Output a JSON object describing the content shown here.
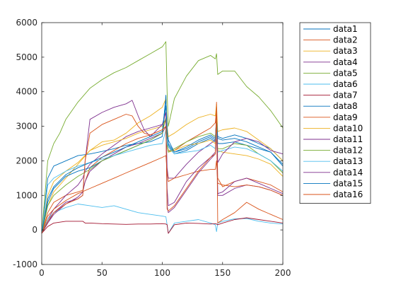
{
  "chart_data": {
    "type": "line",
    "title": "",
    "xlabel": "",
    "ylabel": "",
    "xlim": [
      0,
      200
    ],
    "ylim": [
      -1000,
      6000
    ],
    "xticks": [
      0,
      50,
      100,
      150,
      200
    ],
    "yticks": [
      -1000,
      0,
      1000,
      2000,
      3000,
      4000,
      5000,
      6000
    ],
    "xtick_labels": [
      "0",
      "50",
      "100",
      "150",
      "200"
    ],
    "ytick_labels": [
      "-1000",
      "0",
      "1000",
      "2000",
      "3000",
      "4000",
      "5000",
      "6000"
    ],
    "grid": false,
    "legend_position": "outside-right",
    "series": [
      {
        "name": "data1",
        "color": "#0072BD",
        "x": [
          0,
          5,
          10,
          20,
          30,
          40,
          50,
          60,
          70,
          80,
          90,
          100,
          103,
          104,
          105,
          110,
          120,
          130,
          140,
          144,
          145,
          146,
          150,
          160,
          170,
          180,
          190,
          200
        ],
        "y": [
          -100,
          1500,
          1850,
          2000,
          2150,
          2200,
          2270,
          2350,
          2450,
          2500,
          2550,
          2700,
          3900,
          3000,
          2600,
          2250,
          2350,
          2550,
          2700,
          2600,
          3200,
          2700,
          2650,
          2750,
          2650,
          2500,
          2350,
          2000
        ]
      },
      {
        "name": "data2",
        "color": "#D95319",
        "x": [
          0,
          5,
          10,
          20,
          30,
          34,
          36,
          40,
          50,
          60,
          70,
          80,
          90,
          100,
          103,
          104,
          105,
          110,
          120,
          130,
          140,
          144,
          145,
          146,
          150,
          160,
          170,
          180,
          190,
          200
        ],
        "y": [
          -100,
          500,
          800,
          1000,
          1100,
          1150,
          1400,
          1800,
          2100,
          2300,
          2500,
          2650,
          2750,
          2900,
          3200,
          2500,
          2300,
          2300,
          2550,
          2750,
          2950,
          3100,
          3500,
          1500,
          1250,
          1400,
          1500,
          1400,
          1300,
          1100
        ]
      },
      {
        "name": "data3",
        "color": "#EDB120",
        "x": [
          0,
          5,
          10,
          20,
          30,
          40,
          50,
          60,
          70,
          75,
          80,
          90,
          100,
          103,
          104,
          105,
          110,
          120,
          130,
          140,
          144,
          145,
          146,
          150,
          160,
          170,
          180,
          190,
          200
        ],
        "y": [
          -100,
          700,
          1100,
          1500,
          1900,
          2300,
          2550,
          2600,
          2800,
          2950,
          3100,
          3300,
          3550,
          3800,
          3000,
          2700,
          2800,
          3050,
          3250,
          3350,
          3300,
          3650,
          2850,
          2900,
          2950,
          2850,
          2600,
          2350,
          2000
        ]
      },
      {
        "name": "data4",
        "color": "#7E2F8E",
        "x": [
          0,
          5,
          10,
          20,
          30,
          34,
          36,
          40,
          50,
          60,
          70,
          80,
          90,
          100,
          103,
          104,
          105,
          110,
          120,
          130,
          140,
          144,
          145,
          146,
          150,
          160,
          170,
          180,
          190,
          200
        ],
        "y": [
          -100,
          300,
          600,
          1000,
          1300,
          1500,
          1700,
          1900,
          2200,
          2450,
          2700,
          2850,
          2950,
          3050,
          3200,
          1800,
          1500,
          1500,
          1900,
          2250,
          2500,
          2600,
          3300,
          1000,
          1000,
          1200,
          1300,
          1250,
          1150,
          1000
        ]
      },
      {
        "name": "data5",
        "color": "#77AC30",
        "x": [
          0,
          5,
          10,
          15,
          20,
          30,
          40,
          50,
          60,
          70,
          80,
          90,
          100,
          103,
          104,
          105,
          110,
          120,
          130,
          140,
          144,
          145,
          146,
          150,
          160,
          170,
          180,
          190,
          195,
          200
        ],
        "y": [
          -100,
          2000,
          2500,
          2800,
          3200,
          3700,
          4100,
          4350,
          4550,
          4700,
          4900,
          5100,
          5300,
          5450,
          4000,
          3000,
          3800,
          4450,
          4900,
          5050,
          4950,
          5100,
          4500,
          4600,
          4600,
          4150,
          3850,
          3450,
          3200,
          2950
        ]
      },
      {
        "name": "data6",
        "color": "#4DBEEE",
        "x": [
          0,
          5,
          10,
          20,
          30,
          40,
          50,
          60,
          70,
          80,
          90,
          100,
          103,
          104,
          105,
          110,
          120,
          130,
          140,
          144,
          145,
          146,
          150,
          160,
          170,
          180,
          190,
          200
        ],
        "y": [
          -100,
          300,
          500,
          650,
          750,
          700,
          650,
          700,
          600,
          500,
          450,
          400,
          380,
          150,
          -100,
          200,
          250,
          300,
          200,
          150,
          -50,
          200,
          250,
          320,
          330,
          250,
          200,
          170
        ]
      },
      {
        "name": "data7",
        "color": "#A2142F",
        "x": [
          0,
          5,
          10,
          20,
          30,
          34,
          36,
          40,
          50,
          60,
          70,
          80,
          90,
          100,
          103,
          104,
          105,
          110,
          120,
          130,
          140,
          144,
          145,
          146,
          150,
          160,
          170,
          180,
          190,
          200
        ],
        "y": [
          -100,
          100,
          200,
          250,
          250,
          250,
          200,
          200,
          180,
          170,
          160,
          170,
          170,
          180,
          170,
          150,
          -100,
          150,
          200,
          190,
          170,
          180,
          170,
          150,
          200,
          300,
          350,
          300,
          250,
          200
        ]
      },
      {
        "name": "data8",
        "color": "#0072BD",
        "x": [
          0,
          5,
          10,
          20,
          30,
          40,
          50,
          60,
          70,
          80,
          90,
          100,
          103,
          104,
          105,
          110,
          120,
          130,
          140,
          144,
          145,
          146,
          150,
          160,
          170,
          180,
          190,
          200
        ],
        "y": [
          -100,
          800,
          1200,
          1550,
          1700,
          1800,
          2000,
          2150,
          2300,
          2450,
          2600,
          2800,
          3600,
          2800,
          2450,
          2200,
          2300,
          2500,
          2650,
          2550,
          3100,
          2500,
          2500,
          2550,
          2450,
          2350,
          2250,
          1850
        ]
      },
      {
        "name": "data9",
        "color": "#D95319",
        "x": [
          0,
          5,
          10,
          20,
          30,
          40,
          50,
          60,
          70,
          80,
          90,
          100,
          103,
          104,
          105,
          110,
          120,
          130,
          140,
          144,
          145,
          146,
          150,
          160,
          170,
          180,
          190,
          200
        ],
        "y": [
          -100,
          400,
          600,
          850,
          1050,
          1200,
          1350,
          1500,
          1650,
          1800,
          1950,
          2100,
          2150,
          1700,
          1400,
          1500,
          1600,
          1700,
          1750,
          1750,
          2000,
          1350,
          1300,
          1250,
          1300,
          1250,
          1150,
          1000
        ]
      },
      {
        "name": "data10",
        "color": "#EDB120",
        "x": [
          0,
          5,
          10,
          20,
          30,
          40,
          50,
          60,
          70,
          80,
          90,
          100,
          103,
          104,
          105,
          110,
          120,
          130,
          140,
          144,
          145,
          146,
          150,
          160,
          170,
          180,
          190,
          200
        ],
        "y": [
          -100,
          1000,
          1400,
          1700,
          1950,
          2300,
          2450,
          2550,
          2650,
          2800,
          2900,
          3000,
          3200,
          2500,
          2250,
          2300,
          2450,
          2500,
          2600,
          2500,
          2950,
          2300,
          2250,
          2200,
          2150,
          2050,
          1900,
          1550
        ]
      },
      {
        "name": "data11",
        "color": "#7E2F8E",
        "x": [
          0,
          5,
          10,
          20,
          30,
          34,
          36,
          40,
          50,
          60,
          70,
          80,
          90,
          100,
          103,
          104,
          105,
          110,
          120,
          130,
          140,
          144,
          145,
          146,
          150,
          160,
          170,
          180,
          190,
          200
        ],
        "y": [
          -100,
          200,
          450,
          750,
          950,
          1100,
          1400,
          1700,
          2000,
          2200,
          2400,
          2500,
          2650,
          2800,
          3000,
          1200,
          700,
          800,
          1400,
          1800,
          2100,
          2250,
          2800,
          1050,
          1100,
          1400,
          1500,
          1350,
          1200,
          1050
        ]
      },
      {
        "name": "data12",
        "color": "#77AC30",
        "x": [
          0,
          5,
          10,
          20,
          30,
          40,
          50,
          60,
          70,
          80,
          90,
          100,
          103,
          104,
          105,
          110,
          120,
          130,
          140,
          144,
          145,
          146,
          150,
          160,
          170,
          180,
          190,
          200
        ],
        "y": [
          -100,
          700,
          1000,
          1300,
          1550,
          1750,
          2000,
          2150,
          2300,
          2450,
          2600,
          2800,
          3250,
          2450,
          2250,
          2350,
          2550,
          2700,
          2800,
          2700,
          3000,
          2350,
          2350,
          2500,
          2450,
          2200,
          2000,
          1650
        ]
      },
      {
        "name": "data13",
        "color": "#4DBEEE",
        "x": [
          0,
          5,
          10,
          20,
          30,
          40,
          50,
          60,
          70,
          80,
          90,
          100,
          103,
          104,
          105,
          110,
          120,
          130,
          140,
          144,
          145,
          146,
          150,
          160,
          170,
          180,
          190,
          200
        ],
        "y": [
          -100,
          1300,
          1500,
          1700,
          1850,
          1950,
          2050,
          2150,
          2250,
          2350,
          2450,
          2500,
          2900,
          2500,
          2400,
          2200,
          2250,
          2300,
          2450,
          2350,
          2800,
          2250,
          2300,
          2400,
          2350,
          2200,
          2000,
          1700
        ]
      },
      {
        "name": "data14",
        "color": "#7E2F8E",
        "x": [
          0,
          5,
          10,
          20,
          30,
          34,
          36,
          40,
          50,
          60,
          70,
          75,
          80,
          85,
          90,
          100,
          103,
          104,
          105,
          110,
          120,
          130,
          140,
          144,
          145,
          146,
          150,
          160,
          170,
          180,
          190,
          200
        ],
        "y": [
          -100,
          200,
          500,
          800,
          900,
          1000,
          2000,
          3200,
          3400,
          3550,
          3650,
          3750,
          3300,
          2900,
          2700,
          3050,
          3400,
          700,
          500,
          650,
          1150,
          1650,
          2050,
          2200,
          3550,
          1950,
          2200,
          2550,
          2650,
          2550,
          2300,
          2200
        ]
      },
      {
        "name": "data15",
        "color": "#0072BD",
        "x": [
          0,
          5,
          10,
          20,
          30,
          40,
          50,
          60,
          70,
          80,
          90,
          100,
          103,
          104,
          105,
          110,
          120,
          130,
          140,
          144,
          145,
          146,
          150,
          160,
          170,
          180,
          190,
          200
        ],
        "y": [
          -100,
          900,
          1250,
          1600,
          1800,
          1950,
          2100,
          2250,
          2400,
          2550,
          2700,
          2850,
          3800,
          2900,
          2500,
          2250,
          2400,
          2600,
          2750,
          2650,
          3250,
          2650,
          2600,
          2650,
          2550,
          2400,
          2250,
          1900
        ]
      },
      {
        "name": "data16",
        "color": "#D95319",
        "x": [
          0,
          5,
          10,
          20,
          30,
          34,
          36,
          40,
          50,
          60,
          70,
          75,
          80,
          85,
          90,
          100,
          103,
          104,
          105,
          110,
          120,
          130,
          140,
          144,
          145,
          146,
          150,
          160,
          170,
          180,
          190,
          200
        ],
        "y": [
          -100,
          250,
          500,
          750,
          900,
          1000,
          2000,
          2800,
          3050,
          3200,
          3350,
          3300,
          3000,
          2800,
          2750,
          2900,
          3000,
          600,
          550,
          700,
          1200,
          1700,
          2100,
          2200,
          3700,
          200,
          300,
          500,
          800,
          600,
          450,
          300
        ]
      }
    ]
  }
}
